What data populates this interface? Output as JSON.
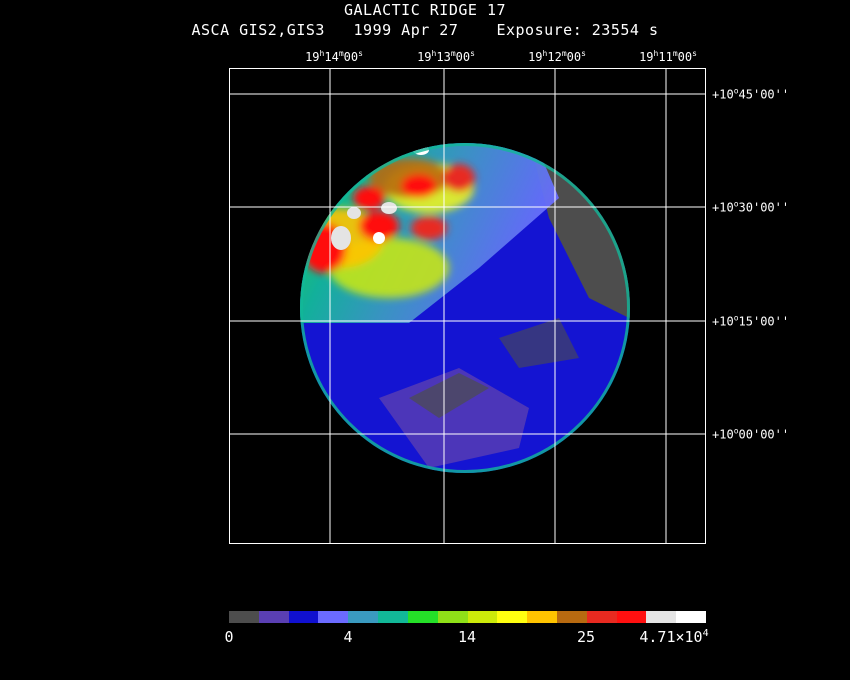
{
  "header": {
    "title": "GALACTIC RIDGE 17",
    "subtitle": "ASCA GIS2,GIS3   1999 Apr 27    Exposure: 23554 s"
  },
  "ra_labels": [
    {
      "h": "19",
      "m": "14",
      "s": "00"
    },
    {
      "h": "19",
      "m": "13",
      "s": "00"
    },
    {
      "h": "19",
      "m": "12",
      "s": "00"
    },
    {
      "h": "19",
      "m": "11",
      "s": "00"
    }
  ],
  "dec_labels": [
    {
      "deg": "+10",
      "min": "45",
      "sec": "00"
    },
    {
      "deg": "+10",
      "min": "30",
      "sec": "00"
    },
    {
      "deg": "+10",
      "min": "15",
      "sec": "00"
    },
    {
      "deg": "+10",
      "min": "00",
      "sec": "00"
    }
  ],
  "colorbar": {
    "colors": [
      "#4d4d4d",
      "#5a3fb3",
      "#1010d0",
      "#6b6bff",
      "#3a9ac0",
      "#12b898",
      "#25e028",
      "#8fe018",
      "#ccea0a",
      "#ffff10",
      "#ffc400",
      "#b86a10",
      "#e82a20",
      "#ff1010",
      "#e4e4e4",
      "#ffffff"
    ],
    "ticks": [
      "0",
      "4",
      "14",
      "25"
    ],
    "max_label": "4.71×10",
    "max_exp": "4"
  }
}
